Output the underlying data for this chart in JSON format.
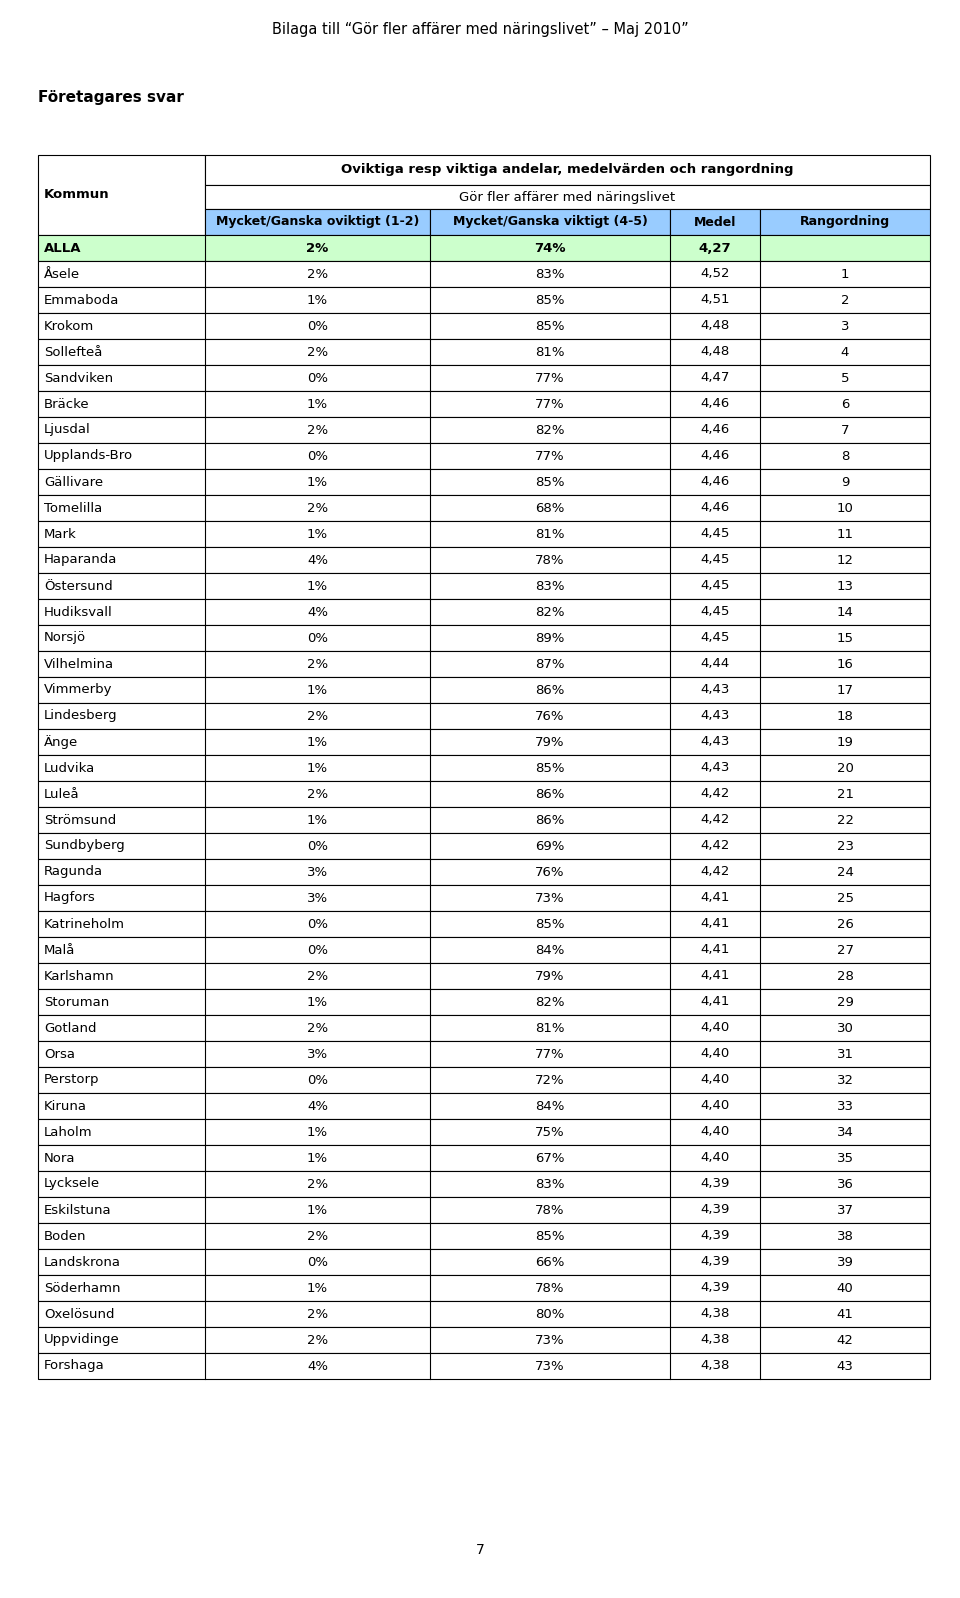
{
  "title": "Bilaga till “Gör fler affärer med näringslivet” – Maj 2010”",
  "subtitle1": "Företagares svar",
  "col_header_main": "Oviktiga resp viktiga andelar, medelvärden och rangordning",
  "col_header_sub": "Gör fler affärer med näringslivet",
  "col1_label": "Mycket/Ganska oviktigt (1-2)",
  "col2_label": "Mycket/Ganska viktigt (4-5)",
  "col3_label": "Medel",
  "col4_label": "Rangordning",
  "row_label_col": "Kommun",
  "rows": [
    [
      "ALLA",
      "2%",
      "74%",
      "4,27",
      "",
      true
    ],
    [
      "Åsele",
      "2%",
      "83%",
      "4,52",
      "1",
      false
    ],
    [
      "Emmaboda",
      "1%",
      "85%",
      "4,51",
      "2",
      false
    ],
    [
      "Krokom",
      "0%",
      "85%",
      "4,48",
      "3",
      false
    ],
    [
      "Sollefteå",
      "2%",
      "81%",
      "4,48",
      "4",
      false
    ],
    [
      "Sandviken",
      "0%",
      "77%",
      "4,47",
      "5",
      false
    ],
    [
      "Bräcke",
      "1%",
      "77%",
      "4,46",
      "6",
      false
    ],
    [
      "Ljusdal",
      "2%",
      "82%",
      "4,46",
      "7",
      false
    ],
    [
      "Upplands-Bro",
      "0%",
      "77%",
      "4,46",
      "8",
      false
    ],
    [
      "Gällivare",
      "1%",
      "85%",
      "4,46",
      "9",
      false
    ],
    [
      "Tomelilla",
      "2%",
      "68%",
      "4,46",
      "10",
      false
    ],
    [
      "Mark",
      "1%",
      "81%",
      "4,45",
      "11",
      false
    ],
    [
      "Haparanda",
      "4%",
      "78%",
      "4,45",
      "12",
      false
    ],
    [
      "Östersund",
      "1%",
      "83%",
      "4,45",
      "13",
      false
    ],
    [
      "Hudiksvall",
      "4%",
      "82%",
      "4,45",
      "14",
      false
    ],
    [
      "Norsjö",
      "0%",
      "89%",
      "4,45",
      "15",
      false
    ],
    [
      "Vilhelmina",
      "2%",
      "87%",
      "4,44",
      "16",
      false
    ],
    [
      "Vimmerby",
      "1%",
      "86%",
      "4,43",
      "17",
      false
    ],
    [
      "Lindesberg",
      "2%",
      "76%",
      "4,43",
      "18",
      false
    ],
    [
      "Änge",
      "1%",
      "79%",
      "4,43",
      "19",
      false
    ],
    [
      "Ludvika",
      "1%",
      "85%",
      "4,43",
      "20",
      false
    ],
    [
      "Luleå",
      "2%",
      "86%",
      "4,42",
      "21",
      false
    ],
    [
      "Strömsund",
      "1%",
      "86%",
      "4,42",
      "22",
      false
    ],
    [
      "Sundbyberg",
      "0%",
      "69%",
      "4,42",
      "23",
      false
    ],
    [
      "Ragunda",
      "3%",
      "76%",
      "4,42",
      "24",
      false
    ],
    [
      "Hagfors",
      "3%",
      "73%",
      "4,41",
      "25",
      false
    ],
    [
      "Katrineholm",
      "0%",
      "85%",
      "4,41",
      "26",
      false
    ],
    [
      "Malå",
      "0%",
      "84%",
      "4,41",
      "27",
      false
    ],
    [
      "Karlshamn",
      "2%",
      "79%",
      "4,41",
      "28",
      false
    ],
    [
      "Storuman",
      "1%",
      "82%",
      "4,41",
      "29",
      false
    ],
    [
      "Gotland",
      "2%",
      "81%",
      "4,40",
      "30",
      false
    ],
    [
      "Orsa",
      "3%",
      "77%",
      "4,40",
      "31",
      false
    ],
    [
      "Perstorp",
      "0%",
      "72%",
      "4,40",
      "32",
      false
    ],
    [
      "Kiruna",
      "4%",
      "84%",
      "4,40",
      "33",
      false
    ],
    [
      "Laholm",
      "1%",
      "75%",
      "4,40",
      "34",
      false
    ],
    [
      "Nora",
      "1%",
      "67%",
      "4,40",
      "35",
      false
    ],
    [
      "Lycksele",
      "2%",
      "83%",
      "4,39",
      "36",
      false
    ],
    [
      "Eskilstuna",
      "1%",
      "78%",
      "4,39",
      "37",
      false
    ],
    [
      "Boden",
      "2%",
      "85%",
      "4,39",
      "38",
      false
    ],
    [
      "Landskrona",
      "0%",
      "66%",
      "4,39",
      "39",
      false
    ],
    [
      "Söderhamn",
      "1%",
      "78%",
      "4,39",
      "40",
      false
    ],
    [
      "Oxelösund",
      "2%",
      "80%",
      "4,38",
      "41",
      false
    ],
    [
      "Uppvidinge",
      "2%",
      "73%",
      "4,38",
      "42",
      false
    ],
    [
      "Forshaga",
      "4%",
      "73%",
      "4,38",
      "43",
      false
    ]
  ],
  "bg_color_header_blue": "#99CCFF",
  "bg_color_header_green": "#CCFFCC",
  "bg_color_alla_green": "#CCFFCC",
  "bg_color_white": "#FFFFFF",
  "border_color": "#000000",
  "text_color": "#000000",
  "page_number": "7",
  "font_size_title": 10.5,
  "font_size_body": 9.5,
  "font_size_header": 9.5,
  "font_size_subtitle": 11
}
